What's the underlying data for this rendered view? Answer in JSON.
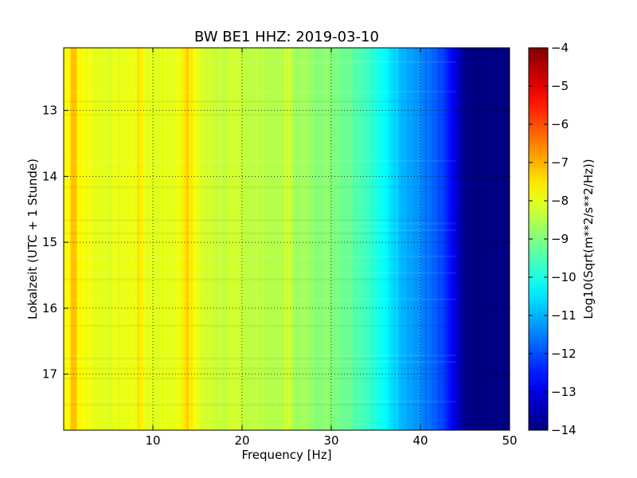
{
  "chart_data": {
    "type": "heatmap",
    "title": "BW BE1 HHZ: 2019-03-10",
    "xlabel": "Frequency [Hz]",
    "ylabel": "Lokalzeit (UTC + 1 Stunde)",
    "xlim": [
      0,
      50
    ],
    "ylim": [
      12.05,
      17.85
    ],
    "y_inverted": true,
    "x_ticks": [
      10,
      20,
      30,
      40,
      50
    ],
    "x_tick_labels": [
      "10",
      "20",
      "30",
      "40",
      "50"
    ],
    "y_ticks": [
      13,
      14,
      15,
      16,
      17
    ],
    "y_tick_labels": [
      "13",
      "14",
      "15",
      "16",
      "17"
    ],
    "grid": true,
    "colorbar": {
      "label": "Log10(Sqrt(m**2/s**2/Hz))",
      "range": [
        -14,
        -4
      ],
      "ticks": [
        -4,
        -5,
        -6,
        -7,
        -8,
        -9,
        -10,
        -11,
        -12,
        -13,
        -14
      ],
      "tick_labels": [
        "−4",
        "−5",
        "−6",
        "−7",
        "−8",
        "−9",
        "−10",
        "−11",
        "−12",
        "−13",
        "−14"
      ],
      "colormap": "jet"
    },
    "spectrum_profile": {
      "frequency_hz": [
        0,
        1,
        2,
        4,
        6,
        8,
        10,
        12,
        14,
        16,
        18,
        20,
        22,
        24,
        26,
        28,
        30,
        32,
        34,
        36,
        38,
        40,
        42,
        43,
        44,
        45,
        50
      ],
      "log_amplitude": [
        -7.9,
        -7.4,
        -7.8,
        -8.0,
        -8.0,
        -7.9,
        -8.0,
        -8.0,
        -7.8,
        -8.2,
        -8.3,
        -8.3,
        -8.4,
        -8.5,
        -8.6,
        -8.8,
        -8.9,
        -9.2,
        -9.6,
        -10.3,
        -10.9,
        -11.4,
        -12.0,
        -12.4,
        -13.2,
        -14.0,
        -14.0
      ]
    },
    "highlighted_lines_hz": [
      1.0,
      8.5,
      13.5,
      14.0,
      25.0
    ]
  }
}
